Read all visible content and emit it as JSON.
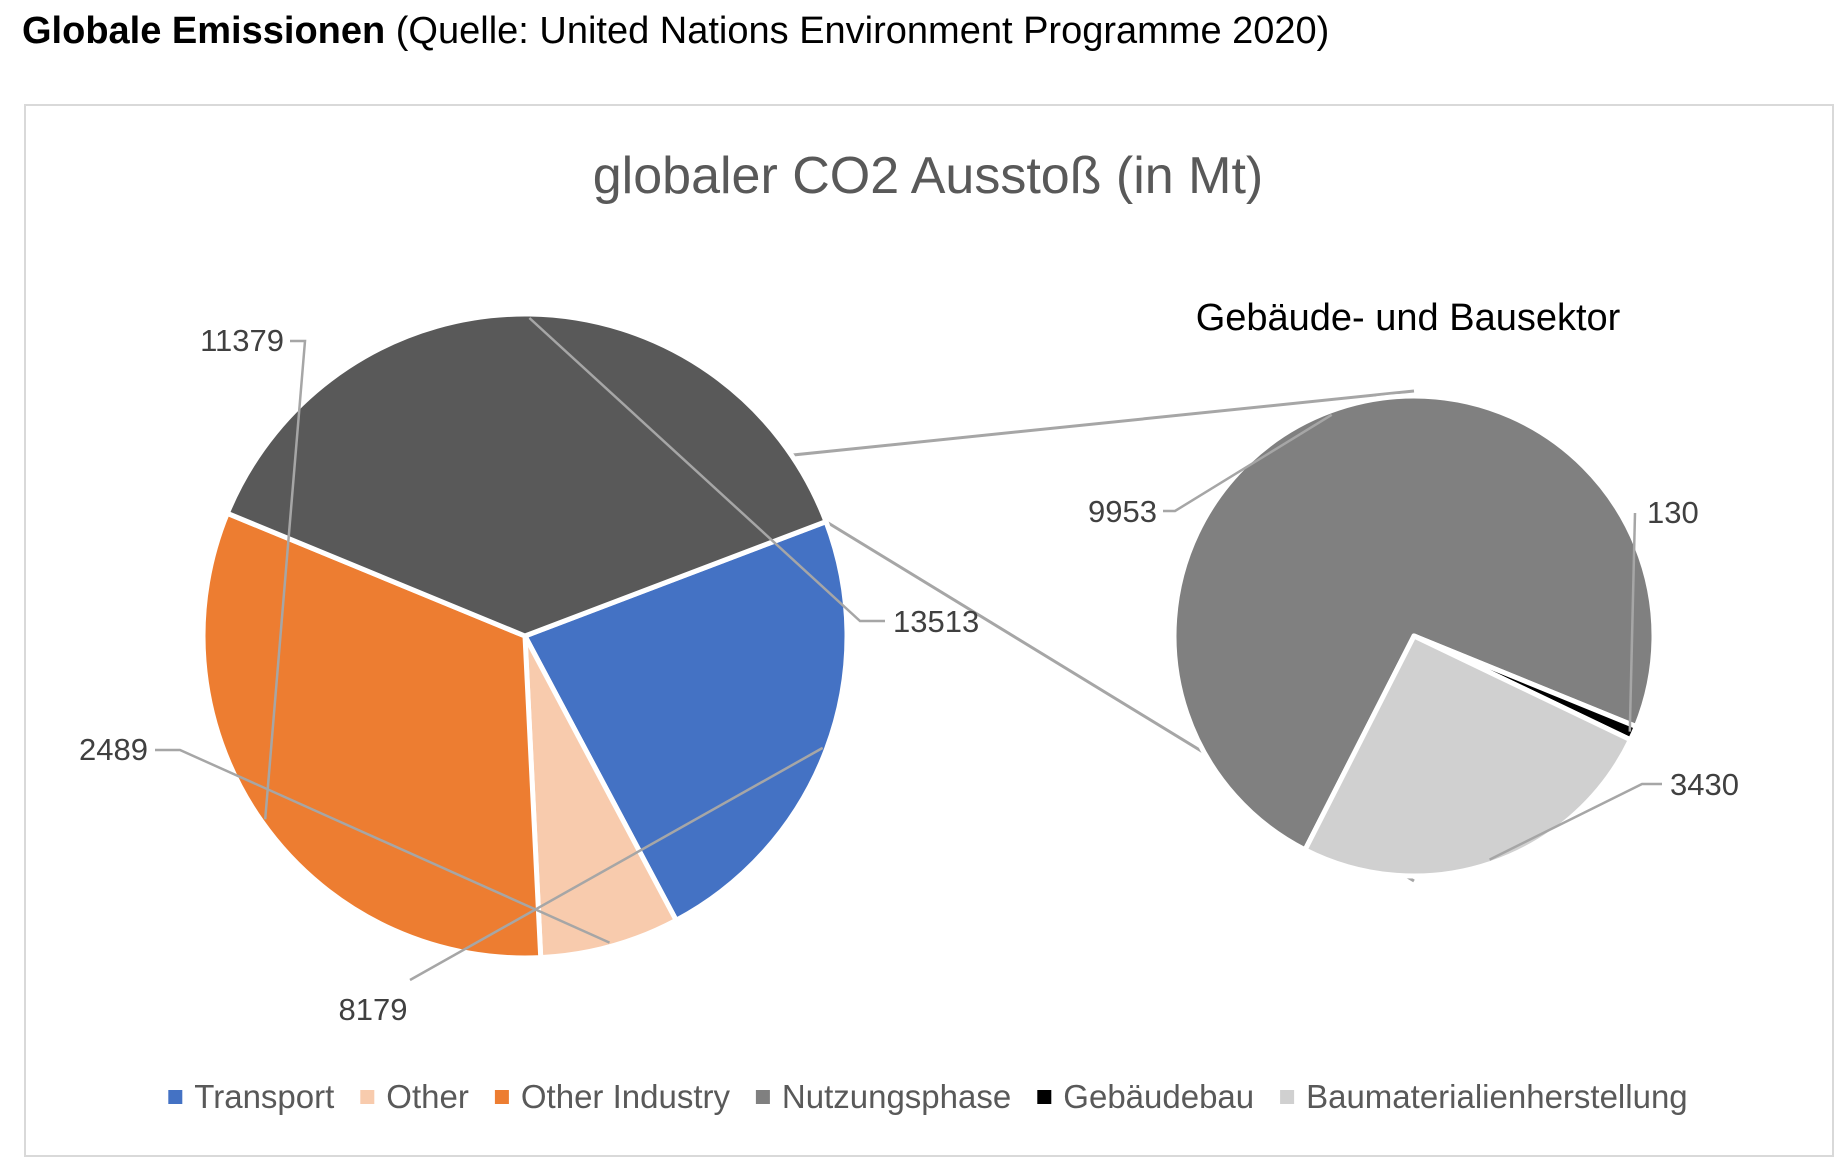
{
  "heading": {
    "bold": "Globale Emissionen",
    "normal": "(Quelle: United Nations Environment Programme 2020)"
  },
  "chart_data": {
    "type": "pie",
    "variant": "pie-of-pie",
    "title": "globaler CO2 Ausstoß (in Mt)",
    "secondary_title": "Gebäude- und Bausektor",
    "legend_position": "bottom",
    "primary": {
      "slices": [
        {
          "name": "Transport",
          "value": 8179,
          "color": "#4472C4"
        },
        {
          "name": "Other",
          "value": 2489,
          "color": "#F8CBAD"
        },
        {
          "name": "Other Industry",
          "value": 11379,
          "color": "#ED7D31"
        },
        {
          "name": "",
          "value": 13513,
          "color": "#595959"
        }
      ]
    },
    "secondary": {
      "slices": [
        {
          "name": "Nutzungsphase",
          "value": 9953,
          "color": "#808080"
        },
        {
          "name": "Gebäudebau",
          "value": 130,
          "color": "#000000"
        },
        {
          "name": "Baumaterialienherstellung",
          "value": 3430,
          "color": "#D0D0D0"
        }
      ]
    },
    "legend": [
      {
        "label": "Transport",
        "color": "#4472C4"
      },
      {
        "label": "Other",
        "color": "#F8CBAD"
      },
      {
        "label": "Other Industry",
        "color": "#ED7D31"
      },
      {
        "label": "Nutzungsphase",
        "color": "#808080"
      },
      {
        "label": "Gebäudebau",
        "color": "#000000"
      },
      {
        "label": "Baumaterialienherstellung",
        "color": "#D0D0D0"
      }
    ]
  }
}
